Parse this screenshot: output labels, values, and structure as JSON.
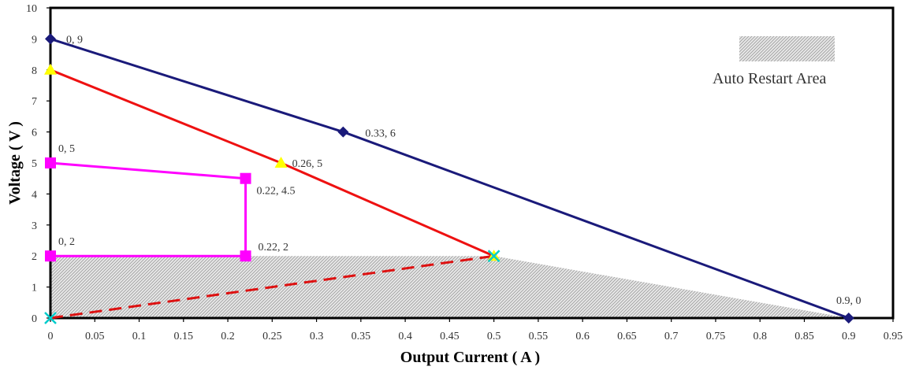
{
  "chart_data": {
    "type": "line",
    "title": "",
    "xlabel": "Output Current ( A )",
    "ylabel": "Voltage ( V )",
    "xlim": [
      0,
      0.95
    ],
    "ylim": [
      0,
      10
    ],
    "xticks": [
      "0",
      "0.05",
      "0.1",
      "0.15",
      "0.2",
      "0.25",
      "0.3",
      "0.35",
      "0.4",
      "0.45",
      "0.5",
      "0.55",
      "0.6",
      "0.65",
      "0.7",
      "0.75",
      "0.8",
      "0.85",
      "0.9",
      "0.95"
    ],
    "yticks": [
      "0",
      "1",
      "2",
      "3",
      "4",
      "5",
      "6",
      "7",
      "8",
      "9",
      "10"
    ],
    "grid": false,
    "legend": {
      "label": "Auto Restart Area",
      "placement": "top-right",
      "pattern": "hatched gray"
    },
    "shaded_region": {
      "x": [
        0,
        0.9
      ],
      "y_top": 2
    },
    "series": [
      {
        "color": "#1a1a7a",
        "marker": "diamond",
        "line": "solid",
        "points": [
          [
            0,
            9
          ],
          [
            0.33,
            6
          ],
          [
            0.9,
            0
          ]
        ],
        "labels": [
          "0, 9",
          "0.33, 6",
          "0.9, 0"
        ]
      },
      {
        "color": "#ee1111",
        "marker": "triangle",
        "marker_color": "#ffff00",
        "line": "solid",
        "points": [
          [
            0,
            8
          ],
          [
            0.26,
            5
          ],
          [
            0.5,
            2
          ]
        ],
        "labels": [
          "",
          "0.26, 5",
          ""
        ]
      },
      {
        "color": "#ff00ff",
        "marker": "square",
        "line": "solid",
        "points": [
          [
            0,
            5
          ],
          [
            0.22,
            4.5
          ],
          [
            0.22,
            2
          ],
          [
            0,
            2
          ]
        ],
        "labels": [
          "0, 5",
          "0.22, 4.5",
          "0.22, 2",
          "0, 2"
        ]
      },
      {
        "color": "#dd1111",
        "marker": "x",
        "marker_color": "#00cccc",
        "line": "dashed",
        "points": [
          [
            0,
            0
          ],
          [
            0.5,
            2
          ]
        ],
        "labels": [
          "",
          ""
        ]
      }
    ]
  }
}
